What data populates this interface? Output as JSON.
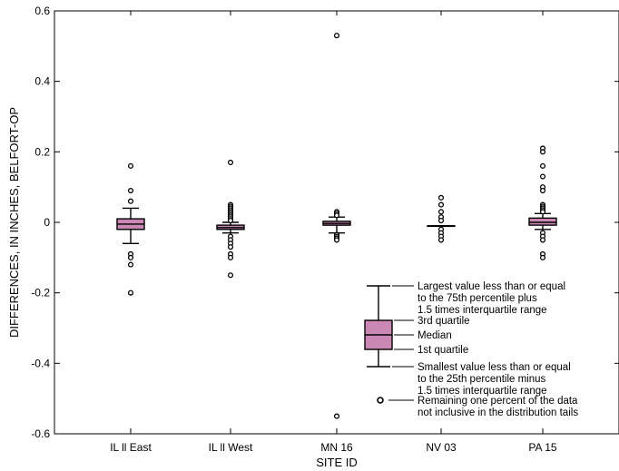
{
  "chart_data": {
    "type": "boxplot",
    "title": "",
    "xlabel": "SITE ID",
    "ylabel": "DIFFERENCES, IN INCHES, BELFORT-OP",
    "ylim": [
      -0.6,
      0.6
    ],
    "yticks": [
      -0.6,
      -0.4,
      -0.2,
      0,
      0.2,
      0.4,
      0.6
    ],
    "ytick_labels": [
      "-0.6",
      "-0.4",
      "-0.2",
      "0",
      "0.2",
      "0.4",
      "0.6"
    ],
    "box_color": "#cc88b5",
    "categories": [
      "IL ll East",
      "IL ll West",
      "MN 16",
      "NV 03",
      "PA 15"
    ],
    "boxes": [
      {
        "name": "IL ll East",
        "whisker_low": -0.06,
        "q1": -0.02,
        "median": -0.005,
        "q3": 0.01,
        "whisker_high": 0.04,
        "outliers": [
          0.16,
          0.09,
          0.06,
          -0.09,
          -0.1,
          -0.12,
          -0.2
        ]
      },
      {
        "name": "IL ll West",
        "whisker_low": -0.03,
        "q1": -0.02,
        "median": -0.015,
        "q3": -0.008,
        "whisker_high": 0.0,
        "outliers": [
          0.17,
          0.05,
          0.045,
          0.04,
          0.035,
          0.03,
          0.025,
          0.02,
          0.015,
          0.01,
          0.005,
          -0.04,
          -0.05,
          -0.06,
          -0.07,
          -0.09,
          -0.1,
          -0.15
        ]
      },
      {
        "name": "MN 16",
        "whisker_low": -0.03,
        "q1": -0.008,
        "median": -0.003,
        "q3": 0.003,
        "whisker_high": 0.015,
        "outliers": [
          0.53,
          0.03,
          0.025,
          0.02,
          -0.035,
          -0.04,
          -0.045,
          -0.05,
          -0.55
        ]
      },
      {
        "name": "NV 03",
        "whisker_low": -0.01,
        "q1": -0.01,
        "median": -0.01,
        "q3": -0.01,
        "whisker_high": -0.01,
        "outliers": [
          0.07,
          0.05,
          0.03,
          0.015,
          0.005,
          -0.02,
          -0.03,
          -0.04,
          -0.05
        ]
      },
      {
        "name": "PA 15",
        "whisker_low": -0.02,
        "q1": -0.008,
        "median": 0.0,
        "q3": 0.012,
        "whisker_high": 0.025,
        "outliers": [
          0.21,
          0.2,
          0.16,
          0.13,
          0.1,
          0.09,
          0.05,
          0.045,
          0.04,
          0.035,
          0.03,
          -0.03,
          -0.04,
          -0.05,
          -0.09,
          -0.1
        ]
      }
    ],
    "legend": {
      "whisker_high_label": [
        "Largest value less than or equal",
        "to the 75th percentile plus",
        "1.5 times interquartile range"
      ],
      "q3_label": "3rd quartile",
      "median_label": "Median",
      "q1_label": "1st quartile",
      "whisker_low_label": [
        "Smallest value less than or equal",
        "to the 25th percentile minus",
        "1.5 times interquartile range"
      ],
      "outlier_label": [
        "Remaining one percent of the data",
        "not inclusive in the distribution tails"
      ]
    }
  }
}
